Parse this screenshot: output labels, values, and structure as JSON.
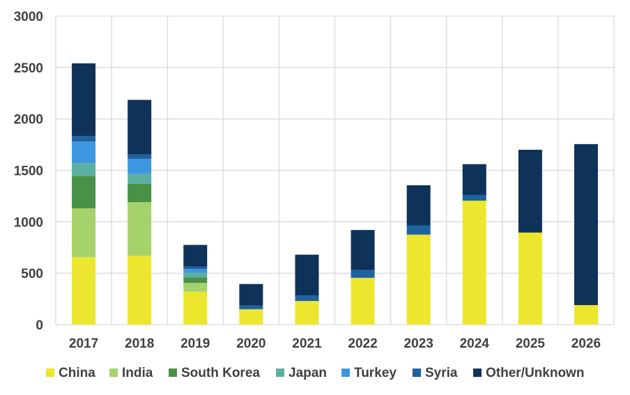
{
  "chart_data": {
    "type": "bar",
    "stacked": true,
    "title": "",
    "xlabel": "",
    "ylabel": "",
    "ylim": [
      0,
      3000
    ],
    "yticks": [
      0,
      500,
      1000,
      1500,
      2000,
      2500,
      3000
    ],
    "grid": true,
    "legend_position": "bottom",
    "categories": [
      "2017",
      "2018",
      "2019",
      "2020",
      "2021",
      "2022",
      "2023",
      "2024",
      "2025",
      "2026"
    ],
    "series": [
      {
        "name": "China",
        "color": "#ede62e",
        "values": [
          655,
          670,
          320,
          150,
          230,
          455,
          875,
          1205,
          895,
          190
        ]
      },
      {
        "name": "India",
        "color": "#a5d26b",
        "values": [
          475,
          520,
          85,
          0,
          0,
          0,
          0,
          0,
          0,
          0
        ]
      },
      {
        "name": "South Korea",
        "color": "#4a9148",
        "values": [
          315,
          180,
          55,
          0,
          0,
          0,
          0,
          0,
          0,
          0
        ]
      },
      {
        "name": "Japan",
        "color": "#5bb0a2",
        "values": [
          125,
          95,
          45,
          0,
          0,
          0,
          0,
          0,
          0,
          0
        ]
      },
      {
        "name": "Turkey",
        "color": "#3d97e0",
        "values": [
          210,
          145,
          35,
          0,
          0,
          0,
          0,
          0,
          0,
          0
        ]
      },
      {
        "name": "Syria",
        "color": "#1f62a0",
        "values": [
          55,
          45,
          25,
          35,
          55,
          75,
          90,
          55,
          0,
          0
        ]
      },
      {
        "name": "Other/Unknown",
        "color": "#0f3259",
        "values": [
          705,
          530,
          210,
          210,
          395,
          390,
          390,
          300,
          805,
          1565
        ]
      }
    ]
  }
}
